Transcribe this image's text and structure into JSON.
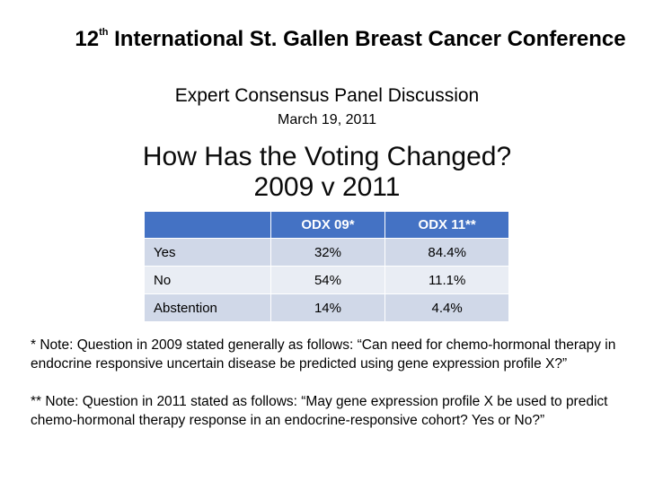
{
  "conference": {
    "title_number": "12",
    "title_superscript": "th",
    "title_rest": " International St. Gallen Breast Cancer Conference",
    "subtitle": "Expert Consensus Panel Discussion",
    "date": "March 19, 2011"
  },
  "heading": {
    "line1": "How Has the Voting Changed?",
    "line2": "2009 v 2011"
  },
  "table": {
    "headers": [
      "",
      "ODX 09*",
      "ODX 11**"
    ],
    "rows": [
      [
        "Yes",
        "32%",
        "84.4%"
      ],
      [
        "No",
        "54%",
        "11.1%"
      ],
      [
        "Abstention",
        "14%",
        "4.4%"
      ]
    ],
    "colors": {
      "header_bg": "#4472c4",
      "row_odd_bg": "#d0d8e8",
      "row_even_bg": "#e9edf4"
    }
  },
  "notes": {
    "note1": "* Note:  Question in 2009 stated generally as follows:  “Can need for chemo-hormonal therapy in endocrine responsive uncertain disease be predicted using gene expression profile X?”",
    "note2": "** Note:  Question in 2011 stated as follows:  “May gene expression profile X be used to predict chemo-hormonal therapy response in an endocrine-responsive cohort?  Yes or No?”"
  }
}
